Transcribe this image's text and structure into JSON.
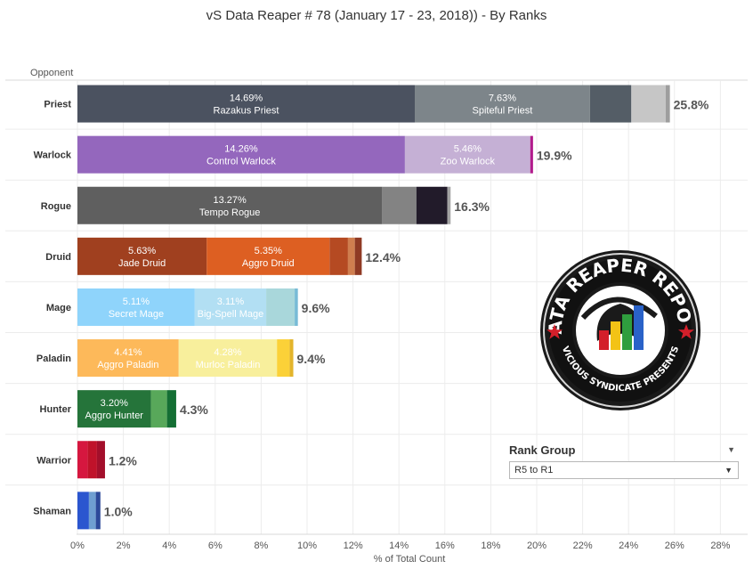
{
  "chart_data": {
    "type": "bar",
    "orientation": "horizontal",
    "stacked": true,
    "title": "vS Data Reaper #  78 (January 17 - 23, 2018)) - By Ranks",
    "ylabel": "Opponent",
    "xlabel": "% of Total Count",
    "xlim": [
      0,
      28
    ],
    "xticks": [
      "0%",
      "2%",
      "4%",
      "6%",
      "8%",
      "10%",
      "12%",
      "14%",
      "16%",
      "18%",
      "20%",
      "22%",
      "24%",
      "26%",
      "28%"
    ],
    "grid": "vertical",
    "categories": [
      "Priest",
      "Warlock",
      "Rogue",
      "Druid",
      "Mage",
      "Paladin",
      "Hunter",
      "Warrior",
      "Shaman"
    ],
    "totals": [
      "25.8%",
      "19.9%",
      "16.3%",
      "12.4%",
      "9.6%",
      "9.4%",
      "4.3%",
      "1.2%",
      "1.0%"
    ],
    "bars": [
      {
        "class": "Priest",
        "segments": [
          {
            "value": 14.69,
            "pct": "14.69%",
            "deck": "Razakus Priest",
            "color": "#4b5260"
          },
          {
            "value": 7.63,
            "pct": "7.63%",
            "deck": "Spiteful Priest",
            "color": "#7d858a"
          },
          {
            "value": 1.8,
            "color": "#545d66"
          },
          {
            "value": 1.5,
            "color": "#c6c6c6"
          },
          {
            "value": 0.18,
            "color": "#9e9e9e"
          }
        ]
      },
      {
        "class": "Warlock",
        "segments": [
          {
            "value": 14.26,
            "pct": "14.26%",
            "deck": "Control Warlock",
            "color": "#9467bd"
          },
          {
            "value": 5.46,
            "pct": "5.46%",
            "deck": "Zoo Warlock",
            "color": "#c5b0d5"
          },
          {
            "value": 0.12,
            "color": "#b21b8c"
          }
        ]
      },
      {
        "class": "Rogue",
        "segments": [
          {
            "value": 13.27,
            "pct": "13.27%",
            "deck": "Tempo Rogue",
            "color": "#5f5f5f"
          },
          {
            "value": 1.49,
            "color": "#838383"
          },
          {
            "value": 1.35,
            "color": "#221b2a"
          },
          {
            "value": 0.14,
            "color": "#a4a4a4"
          }
        ]
      },
      {
        "class": "Druid",
        "segments": [
          {
            "value": 5.63,
            "pct": "5.63%",
            "deck": "Jade Druid",
            "color": "#a0401f"
          },
          {
            "value": 5.35,
            "pct": "5.35%",
            "deck": "Aggro Druid",
            "color": "#dd5f22"
          },
          {
            "value": 0.8,
            "color": "#b54a22"
          },
          {
            "value": 0.3,
            "color": "#cf7e4f"
          },
          {
            "value": 0.3,
            "color": "#8f3a24"
          }
        ]
      },
      {
        "class": "Mage",
        "segments": [
          {
            "value": 5.11,
            "pct": "5.11%",
            "deck": "Secret Mage",
            "color": "#8fd4fb"
          },
          {
            "value": 3.11,
            "pct": "3.11%",
            "deck": "Big-Spell Mage",
            "color": "#b2dff3"
          },
          {
            "value": 1.24,
            "color": "#a9d7db"
          },
          {
            "value": 0.14,
            "color": "#78bbd6"
          }
        ]
      },
      {
        "class": "Paladin",
        "segments": [
          {
            "value": 4.41,
            "pct": "4.41%",
            "deck": "Aggro Paladin",
            "color": "#fdb95a"
          },
          {
            "value": 4.28,
            "pct": "4.28%",
            "deck": "Murloc Paladin",
            "color": "#f8ef9c"
          },
          {
            "value": 0.55,
            "color": "#fbd138"
          },
          {
            "value": 0.16,
            "color": "#e3b42b"
          }
        ]
      },
      {
        "class": "Hunter",
        "segments": [
          {
            "value": 3.2,
            "pct": "3.20%",
            "deck": "Aggro Hunter",
            "color": "#25743a"
          },
          {
            "value": 0.7,
            "color": "#58a85a"
          },
          {
            "value": 0.4,
            "color": "#146f34"
          }
        ]
      },
      {
        "class": "Warrior",
        "segments": [
          {
            "value": 0.45,
            "color": "#d6173f"
          },
          {
            "value": 0.4,
            "color": "#c0122a"
          },
          {
            "value": 0.35,
            "color": "#a30f2b"
          }
        ]
      },
      {
        "class": "Shaman",
        "segments": [
          {
            "value": 0.5,
            "color": "#2b56cf"
          },
          {
            "value": 0.3,
            "color": "#6f9fd1"
          },
          {
            "value": 0.2,
            "color": "#2d4a9a"
          }
        ]
      }
    ]
  },
  "logo": {
    "top_text": "DATA REAPER REPORT",
    "bottom_text": "VICIOUS SYNDICATE PRESENTS"
  },
  "filter": {
    "title": "Rank Group",
    "selected": "R5 to R1",
    "caret_icon": "dropdown-caret-icon"
  }
}
